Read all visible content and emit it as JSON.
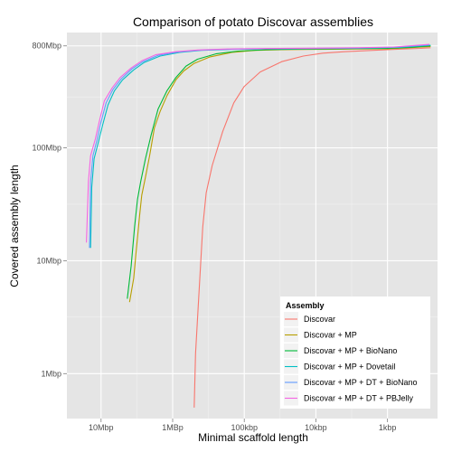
{
  "chart_data": {
    "type": "line",
    "title": "Comparison of potato Discovar assemblies",
    "xlabel": "Minimal scaffold length",
    "ylabel": "Covered assembly length",
    "x_scale": "log10, reversed",
    "y_scale": "log10",
    "xlim_bp": [
      30000000,
      200
    ],
    "ylim_bp": [
      400000,
      1050000000
    ],
    "x_ticks": [
      {
        "value": 10000000,
        "label": "10Mbp"
      },
      {
        "value": 1000000,
        "label": "1MBp"
      },
      {
        "value": 100000,
        "label": "100kbp"
      },
      {
        "value": 10000,
        "label": "10kbp"
      },
      {
        "value": 1000,
        "label": "1kbp"
      }
    ],
    "y_ticks": [
      {
        "value": 1000000,
        "label": "1Mbp"
      },
      {
        "value": 10000000,
        "label": "10Mbp"
      },
      {
        "value": 100000000,
        "label": "100Mbp"
      },
      {
        "value": 800000000,
        "label": "800Mbp"
      }
    ],
    "legend": {
      "title": "Assembly",
      "position": "bottom-right"
    },
    "series": [
      {
        "name": "Discovar",
        "color": "#F8766D",
        "points": [
          [
            500000,
            500000
          ],
          [
            480000,
            1500000
          ],
          [
            430000,
            5000000
          ],
          [
            380000,
            20000000
          ],
          [
            340000,
            40000000
          ],
          [
            280000,
            70000000
          ],
          [
            200000,
            140000000
          ],
          [
            140000,
            250000000
          ],
          [
            100000,
            350000000
          ],
          [
            60000,
            470000000
          ],
          [
            30000,
            580000000
          ],
          [
            15000,
            650000000
          ],
          [
            8000,
            690000000
          ],
          [
            4000,
            710000000
          ],
          [
            2000,
            725000000
          ],
          [
            1000,
            740000000
          ],
          [
            600,
            750000000
          ],
          [
            350,
            760000000
          ],
          [
            250,
            770000000
          ]
        ]
      },
      {
        "name": "Discovar + MP",
        "color": "#B79F00",
        "points": [
          [
            4000000,
            4300000
          ],
          [
            3500000,
            7000000
          ],
          [
            3200000,
            13000000
          ],
          [
            2900000,
            25000000
          ],
          [
            2700000,
            38000000
          ],
          [
            2400000,
            55000000
          ],
          [
            2100000,
            85000000
          ],
          [
            1800000,
            150000000
          ],
          [
            1500000,
            210000000
          ],
          [
            1200000,
            290000000
          ],
          [
            900000,
            400000000
          ],
          [
            700000,
            480000000
          ],
          [
            500000,
            560000000
          ],
          [
            300000,
            640000000
          ],
          [
            150000,
            700000000
          ],
          [
            70000,
            730000000
          ],
          [
            30000,
            740000000
          ],
          [
            10000,
            745000000
          ],
          [
            3000,
            750000000
          ],
          [
            1000,
            755000000
          ],
          [
            500,
            770000000
          ],
          [
            250,
            790000000
          ]
        ]
      },
      {
        "name": "Discovar + MP + BioNano",
        "color": "#00BA38",
        "points": [
          [
            4300000,
            4600000
          ],
          [
            3800000,
            9000000
          ],
          [
            3400000,
            20000000
          ],
          [
            3100000,
            35000000
          ],
          [
            2800000,
            50000000
          ],
          [
            2400000,
            80000000
          ],
          [
            2000000,
            130000000
          ],
          [
            1600000,
            220000000
          ],
          [
            1200000,
            320000000
          ],
          [
            900000,
            420000000
          ],
          [
            650000,
            530000000
          ],
          [
            450000,
            610000000
          ],
          [
            250000,
            680000000
          ],
          [
            120000,
            720000000
          ],
          [
            50000,
            740000000
          ],
          [
            15000,
            750000000
          ],
          [
            5000,
            755000000
          ],
          [
            1000,
            762000000
          ],
          [
            500,
            775000000
          ],
          [
            250,
            800000000
          ]
        ]
      },
      {
        "name": "Discovar + MP + Dovetail",
        "color": "#00BFC4",
        "points": [
          [
            14000000,
            13000000
          ],
          [
            13500000,
            45000000
          ],
          [
            12500000,
            80000000
          ],
          [
            11000000,
            110000000
          ],
          [
            9500000,
            160000000
          ],
          [
            8000000,
            240000000
          ],
          [
            6500000,
            320000000
          ],
          [
            5000000,
            400000000
          ],
          [
            3500000,
            490000000
          ],
          [
            2500000,
            570000000
          ],
          [
            1500000,
            650000000
          ],
          [
            800000,
            700000000
          ],
          [
            400000,
            730000000
          ],
          [
            150000,
            745000000
          ],
          [
            50000,
            752000000
          ],
          [
            10000,
            758000000
          ],
          [
            2000,
            765000000
          ],
          [
            700,
            775000000
          ],
          [
            250,
            810000000
          ]
        ]
      },
      {
        "name": "Discovar + MP + DT + BioNano",
        "color": "#619CFF",
        "points": [
          [
            14500000,
            13000000
          ],
          [
            14000000,
            50000000
          ],
          [
            13000000,
            85000000
          ],
          [
            11500000,
            115000000
          ],
          [
            10000000,
            170000000
          ],
          [
            8500000,
            250000000
          ],
          [
            6800000,
            330000000
          ],
          [
            5200000,
            410000000
          ],
          [
            3700000,
            500000000
          ],
          [
            2600000,
            580000000
          ],
          [
            1600000,
            660000000
          ],
          [
            850000,
            705000000
          ],
          [
            420000,
            732000000
          ],
          [
            160000,
            746000000
          ],
          [
            55000,
            753000000
          ],
          [
            12000,
            759000000
          ],
          [
            2500,
            766000000
          ],
          [
            800,
            778000000
          ],
          [
            260,
            815000000
          ]
        ]
      },
      {
        "name": "Discovar + MP + DT + PBJelly",
        "color": "#F564E3",
        "points": [
          [
            16000000,
            14500000
          ],
          [
            15000000,
            50000000
          ],
          [
            14000000,
            85000000
          ],
          [
            12000000,
            120000000
          ],
          [
            10500000,
            175000000
          ],
          [
            9000000,
            260000000
          ],
          [
            7000000,
            340000000
          ],
          [
            5400000,
            420000000
          ],
          [
            3800000,
            510000000
          ],
          [
            2700000,
            590000000
          ],
          [
            1700000,
            670000000
          ],
          [
            900000,
            710000000
          ],
          [
            440000,
            736000000
          ],
          [
            170000,
            750000000
          ],
          [
            60000,
            757000000
          ],
          [
            13000,
            763000000
          ],
          [
            2600,
            770000000
          ],
          [
            820,
            782000000
          ],
          [
            260,
            825000000
          ]
        ]
      }
    ]
  }
}
